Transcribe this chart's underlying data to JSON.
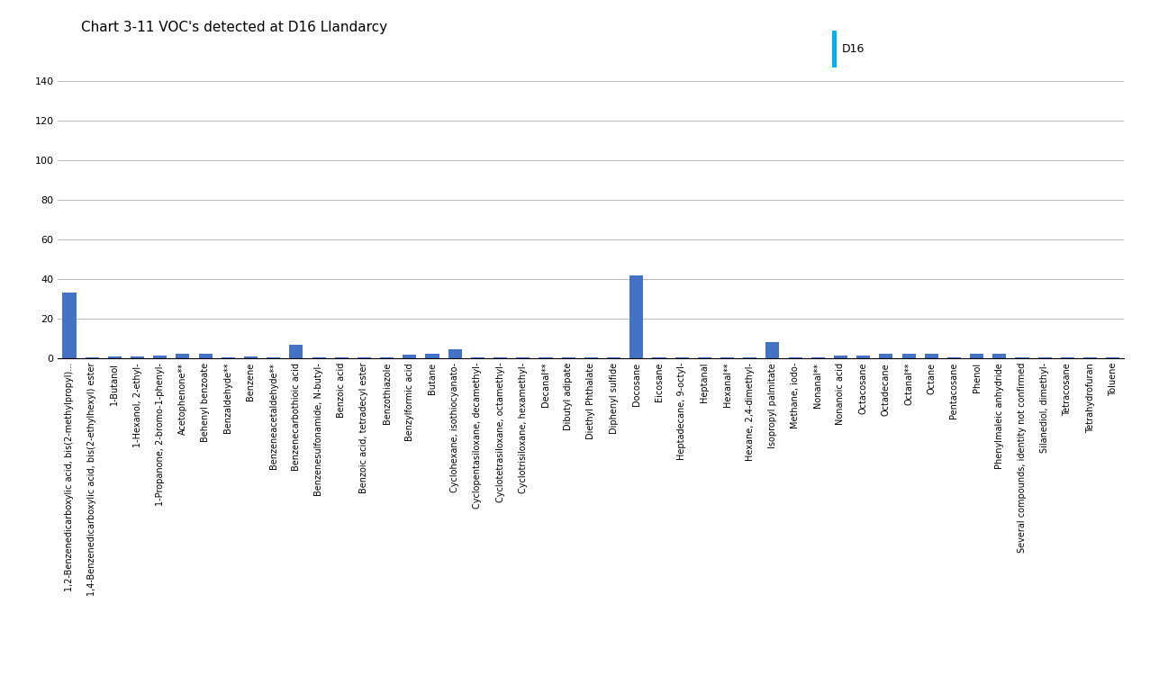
{
  "title": "Chart 3-11 VOC's detected at D16 Llandarcy",
  "categories": [
    "1,2-Benzenedicarboxylic acid, bis(2-methylpropyl)...",
    "1,4-Benzenedicarboxylic acid, bis(2-ethylhexyl) ester",
    "1-Butanol",
    "1-Hexanol, 2-ethyl-",
    "1-Propanone, 2-bromo-1-phenyl-",
    "Acetophenone**",
    "Behenyl benzoate",
    "Benzaldehyde**",
    "Benzene",
    "Benzeneacetaldehyde**",
    "Benzenecarbothioic acid",
    "Benzenesulfonamide, N-butyl-",
    "Benzoic acid",
    "Benzoic acid, tetradecyl ester",
    "Benzothiazole",
    "Benzylformic acid",
    "Butane",
    "Cyclohexane, isothiocyanato-",
    "Cyclopentasiloxane, decamethyl-",
    "Cyclotetrasiloxane, octamethyl-",
    "Cyclotrisiloxane, hexamethyl-",
    "Decanal**",
    "Dibutyl adipate",
    "Diethyl Phthalate",
    "Diphenyl sulfide",
    "Docosane",
    "Eicosane",
    "Heptadecane, 9-octyl-",
    "Heptanal",
    "Hexanal**",
    "Hexane, 2,4-dimethyl-",
    "Isopropyl palmitate",
    "Methane, iodo-",
    "Nonanal**",
    "Nonanoic acid",
    "Octacosane",
    "Octadecane",
    "Octanal**",
    "Octane",
    "Pentacosane",
    "Phenol",
    "Phenylmaleic anhydride",
    "Several compounds, identity not confirmed",
    "Silanediol, dimethyl-",
    "Tetracosane",
    "Tetrahydrofuran",
    "Toluene"
  ],
  "values": [
    33,
    0.5,
    1,
    1,
    1.5,
    2.5,
    2.5,
    0.5,
    1,
    0.5,
    7,
    0.5,
    0.5,
    0.5,
    0.5,
    2,
    2.5,
    4.5,
    0.5,
    0.5,
    0.5,
    0.5,
    0.5,
    0.5,
    0.5,
    42,
    0.5,
    0.5,
    0.5,
    0.5,
    0.5,
    8,
    0.5,
    0.5,
    1.5,
    1.5,
    2.5,
    2.5,
    2.5,
    0.5,
    2.5,
    2.5,
    0.5,
    0.5,
    0.5,
    0.5,
    0.5
  ],
  "bar_color": "#4472C4",
  "ylim": [
    0,
    140
  ],
  "yticks": [
    0,
    20,
    40,
    60,
    80,
    100,
    120,
    140
  ],
  "background_color": "#FFFFFF",
  "title_fontsize": 11,
  "tick_fontsize": 7,
  "legend_label": "D16",
  "legend_color": "#00B0F0"
}
